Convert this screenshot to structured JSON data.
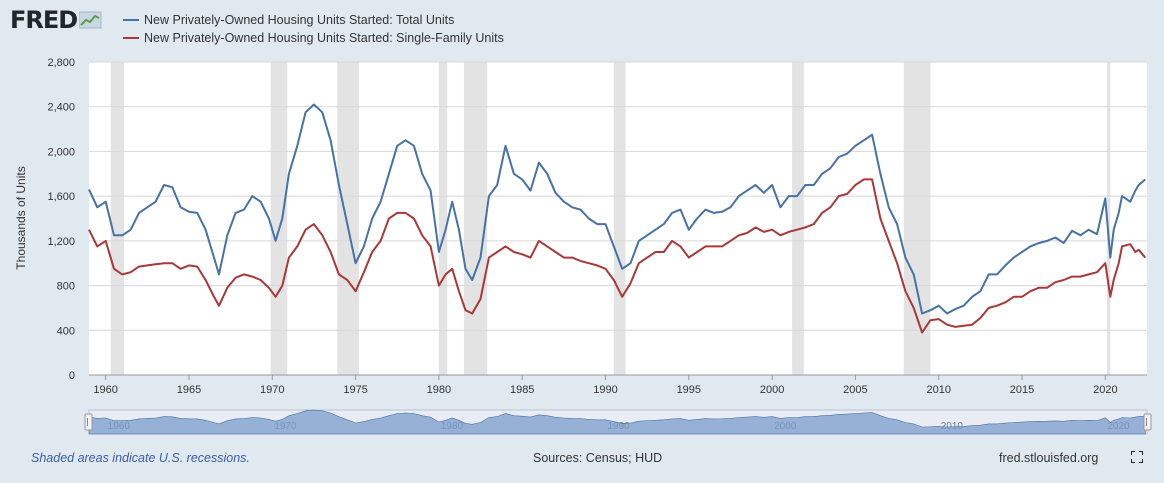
{
  "brand": {
    "name": "FRED"
  },
  "legend": [
    {
      "name": "New Privately-Owned Housing Units Started: Total Units",
      "color": "#4572a7"
    },
    {
      "name": "New Privately-Owned Housing Units Started: Single-Family Units",
      "color": "#aa3838"
    }
  ],
  "footer": {
    "recession_note": "Shaded areas indicate U.S. recessions.",
    "sources": "Sources: Census; HUD",
    "url": "fred.stlouisfed.org"
  },
  "icons": {
    "fullscreen": "fullscreen-icon",
    "logo": "line-chart-icon"
  },
  "navigator_labels": [
    "1960",
    "1970",
    "1980",
    "1990",
    "2000",
    "2010",
    "2020"
  ],
  "colors": {
    "total": "#4572a7",
    "single": "#aa3838",
    "recession": "#e3e3e3",
    "navigator": "#7b9ccc"
  },
  "chart_data": {
    "type": "line",
    "ylabel": "Thousands of Units",
    "ylim": [
      0,
      2800
    ],
    "yticks": [
      "0",
      "400",
      "800",
      "1,200",
      "1,600",
      "2,000",
      "2,400",
      "2,800"
    ],
    "xticks": [
      "1960",
      "1965",
      "1970",
      "1975",
      "1980",
      "1985",
      "1990",
      "1995",
      "2000",
      "2005",
      "2010",
      "2015",
      "2020"
    ],
    "xlim": [
      1959.0,
      2022.5
    ],
    "grid": true,
    "recessions": [
      [
        1960.3,
        1961.1
      ],
      [
        1969.9,
        1970.9
      ],
      [
        1973.9,
        1975.2
      ],
      [
        1980.0,
        1980.5
      ],
      [
        1981.5,
        1982.9
      ],
      [
        1990.5,
        1991.2
      ],
      [
        2001.2,
        2001.9
      ],
      [
        2007.9,
        2009.5
      ],
      [
        2020.1,
        2020.3
      ]
    ],
    "series": [
      {
        "name": "New Privately-Owned Housing Units Started: Total Units",
        "color": "#4572a7",
        "x": [
          1959.0,
          1959.5,
          1960.0,
          1960.5,
          1961.0,
          1961.5,
          1962.0,
          1962.5,
          1963.0,
          1963.5,
          1964.0,
          1964.5,
          1965.0,
          1965.5,
          1966.0,
          1966.5,
          1966.8,
          1967.3,
          1967.8,
          1968.3,
          1968.8,
          1969.3,
          1969.8,
          1970.2,
          1970.6,
          1971.0,
          1971.5,
          1972.0,
          1972.5,
          1973.0,
          1973.5,
          1974.0,
          1974.5,
          1975.0,
          1975.5,
          1976.0,
          1976.5,
          1977.0,
          1977.5,
          1978.0,
          1978.5,
          1979.0,
          1979.5,
          1980.0,
          1980.4,
          1980.8,
          1981.2,
          1981.6,
          1982.0,
          1982.5,
          1983.0,
          1983.5,
          1984.0,
          1984.5,
          1985.0,
          1985.5,
          1986.0,
          1986.5,
          1987.0,
          1987.5,
          1988.0,
          1988.5,
          1989.0,
          1989.5,
          1990.0,
          1990.5,
          1991.0,
          1991.5,
          1992.0,
          1992.5,
          1993.0,
          1993.5,
          1994.0,
          1994.5,
          1995.0,
          1995.5,
          1996.0,
          1996.5,
          1997.0,
          1997.5,
          1998.0,
          1998.5,
          1999.0,
          1999.5,
          2000.0,
          2000.5,
          2001.0,
          2001.5,
          2002.0,
          2002.5,
          2003.0,
          2003.5,
          2004.0,
          2004.5,
          2005.0,
          2005.5,
          2006.0,
          2006.5,
          2007.0,
          2007.5,
          2008.0,
          2008.5,
          2009.0,
          2009.5,
          2010.0,
          2010.5,
          2011.0,
          2011.5,
          2012.0,
          2012.5,
          2013.0,
          2013.5,
          2014.0,
          2014.5,
          2015.0,
          2015.5,
          2016.0,
          2016.5,
          2017.0,
          2017.5,
          2018.0,
          2018.5,
          2019.0,
          2019.5,
          2020.0,
          2020.3,
          2020.5,
          2020.8,
          2021.0,
          2021.5,
          2021.8,
          2022.0,
          2022.4
        ],
        "y": [
          1660,
          1500,
          1550,
          1250,
          1250,
          1300,
          1450,
          1500,
          1550,
          1700,
          1680,
          1500,
          1460,
          1450,
          1300,
          1050,
          900,
          1250,
          1450,
          1480,
          1600,
          1550,
          1400,
          1200,
          1400,
          1800,
          2050,
          2350,
          2420,
          2350,
          2100,
          1700,
          1350,
          1000,
          1150,
          1400,
          1550,
          1800,
          2050,
          2100,
          2050,
          1800,
          1650,
          1100,
          1300,
          1550,
          1300,
          950,
          850,
          1050,
          1600,
          1700,
          2050,
          1800,
          1750,
          1650,
          1900,
          1800,
          1630,
          1550,
          1500,
          1480,
          1400,
          1350,
          1350,
          1150,
          950,
          1000,
          1200,
          1250,
          1300,
          1350,
          1450,
          1480,
          1300,
          1400,
          1480,
          1450,
          1460,
          1500,
          1600,
          1650,
          1700,
          1630,
          1700,
          1500,
          1600,
          1600,
          1700,
          1700,
          1800,
          1850,
          1950,
          1980,
          2050,
          2100,
          2150,
          1800,
          1500,
          1350,
          1050,
          900,
          550,
          580,
          620,
          550,
          590,
          620,
          700,
          750,
          900,
          900,
          980,
          1050,
          1100,
          1150,
          1180,
          1200,
          1230,
          1180,
          1290,
          1250,
          1300,
          1260,
          1580,
          1050,
          1300,
          1450,
          1600,
          1550,
          1650,
          1700,
          1750
        ]
      },
      {
        "name": "New Privately-Owned Housing Units Started: Single-Family Units",
        "color": "#aa3838",
        "x": [
          1959.0,
          1959.5,
          1960.0,
          1960.5,
          1961.0,
          1961.5,
          1962.0,
          1962.5,
          1963.0,
          1963.5,
          1964.0,
          1964.5,
          1965.0,
          1965.5,
          1966.0,
          1966.5,
          1966.8,
          1967.3,
          1967.8,
          1968.3,
          1968.8,
          1969.3,
          1969.8,
          1970.2,
          1970.6,
          1971.0,
          1971.5,
          1972.0,
          1972.5,
          1973.0,
          1973.5,
          1974.0,
          1974.5,
          1975.0,
          1975.5,
          1976.0,
          1976.5,
          1977.0,
          1977.5,
          1978.0,
          1978.5,
          1979.0,
          1979.5,
          1980.0,
          1980.4,
          1980.8,
          1981.2,
          1981.6,
          1982.0,
          1982.5,
          1983.0,
          1983.5,
          1984.0,
          1984.5,
          1985.0,
          1985.5,
          1986.0,
          1986.5,
          1987.0,
          1987.5,
          1988.0,
          1988.5,
          1989.0,
          1989.5,
          1990.0,
          1990.5,
          1991.0,
          1991.5,
          1992.0,
          1992.5,
          1993.0,
          1993.5,
          1994.0,
          1994.5,
          1995.0,
          1995.5,
          1996.0,
          1996.5,
          1997.0,
          1997.5,
          1998.0,
          1998.5,
          1999.0,
          1999.5,
          2000.0,
          2000.5,
          2001.0,
          2001.5,
          2002.0,
          2002.5,
          2003.0,
          2003.5,
          2004.0,
          2004.5,
          2005.0,
          2005.5,
          2006.0,
          2006.5,
          2007.0,
          2007.5,
          2008.0,
          2008.5,
          2009.0,
          2009.5,
          2010.0,
          2010.5,
          2011.0,
          2011.5,
          2012.0,
          2012.5,
          2013.0,
          2013.5,
          2014.0,
          2014.5,
          2015.0,
          2015.5,
          2016.0,
          2016.5,
          2017.0,
          2017.5,
          2018.0,
          2018.5,
          2019.0,
          2019.5,
          2020.0,
          2020.3,
          2020.5,
          2020.8,
          2021.0,
          2021.5,
          2021.8,
          2022.0,
          2022.4
        ],
        "y": [
          1300,
          1150,
          1200,
          950,
          900,
          920,
          970,
          980,
          990,
          1000,
          1000,
          950,
          980,
          970,
          850,
          700,
          620,
          780,
          870,
          900,
          880,
          850,
          780,
          700,
          800,
          1050,
          1150,
          1300,
          1350,
          1250,
          1100,
          900,
          850,
          750,
          920,
          1100,
          1200,
          1400,
          1450,
          1450,
          1400,
          1250,
          1150,
          800,
          900,
          950,
          750,
          580,
          550,
          680,
          1050,
          1100,
          1150,
          1100,
          1080,
          1050,
          1200,
          1150,
          1100,
          1050,
          1050,
          1020,
          1000,
          980,
          950,
          850,
          700,
          820,
          1000,
          1050,
          1100,
          1100,
          1200,
          1150,
          1050,
          1100,
          1150,
          1150,
          1150,
          1200,
          1250,
          1270,
          1320,
          1280,
          1300,
          1250,
          1280,
          1300,
          1320,
          1350,
          1450,
          1500,
          1600,
          1620,
          1700,
          1750,
          1750,
          1400,
          1200,
          1000,
          750,
          600,
          380,
          490,
          500,
          450,
          430,
          440,
          450,
          510,
          600,
          620,
          650,
          700,
          700,
          750,
          780,
          780,
          830,
          850,
          880,
          880,
          900,
          920,
          1000,
          700,
          850,
          1000,
          1150,
          1170,
          1100,
          1120,
          1050
        ]
      }
    ]
  }
}
